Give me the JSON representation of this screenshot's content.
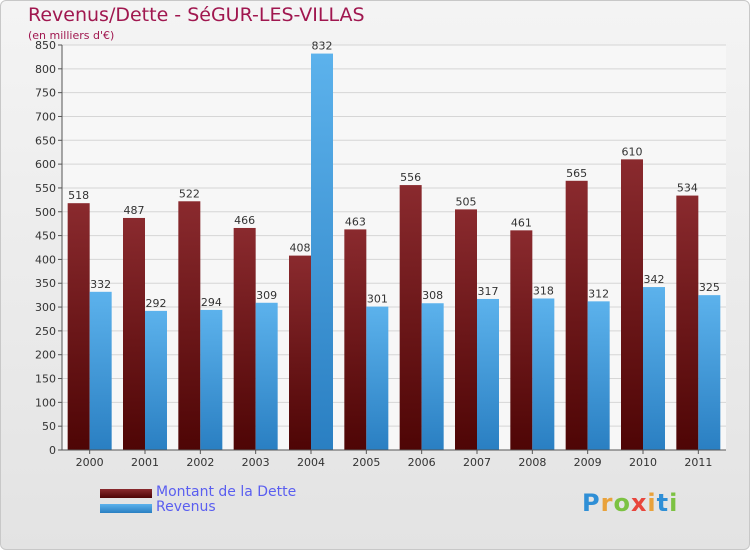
{
  "chart_data": {
    "type": "bar",
    "title": "Revenus/Dette - SéGUR-LES-VILLAS",
    "subtitle": "(en milliers d'€)",
    "categories": [
      "2000",
      "2001",
      "2002",
      "2003",
      "2004",
      "2005",
      "2006",
      "2007",
      "2008",
      "2009",
      "2010",
      "2011"
    ],
    "series": [
      {
        "name": "Montant de la Dette",
        "color": "#7a1e23",
        "values": [
          518,
          487,
          522,
          466,
          408,
          463,
          556,
          505,
          461,
          565,
          610,
          534
        ]
      },
      {
        "name": "Revenus",
        "color": "#4aa3e0",
        "values": [
          332,
          292,
          294,
          309,
          832,
          301,
          308,
          317,
          318,
          312,
          342,
          325
        ]
      }
    ],
    "ylim": [
      0,
      850
    ],
    "yticks": [
      0,
      50,
      100,
      150,
      200,
      250,
      300,
      350,
      400,
      450,
      500,
      550,
      600,
      650,
      700,
      750,
      800,
      850
    ],
    "grid": true,
    "legend_position": "bottom-left"
  },
  "brand": {
    "letters": [
      "P",
      "r",
      "o",
      "x",
      "i",
      "t",
      "i"
    ],
    "colors": [
      "#2f8fd6",
      "#e9a23b",
      "#7cc242",
      "#e8453c",
      "#e9a23b",
      "#2f8fd6",
      "#7cc242"
    ]
  }
}
